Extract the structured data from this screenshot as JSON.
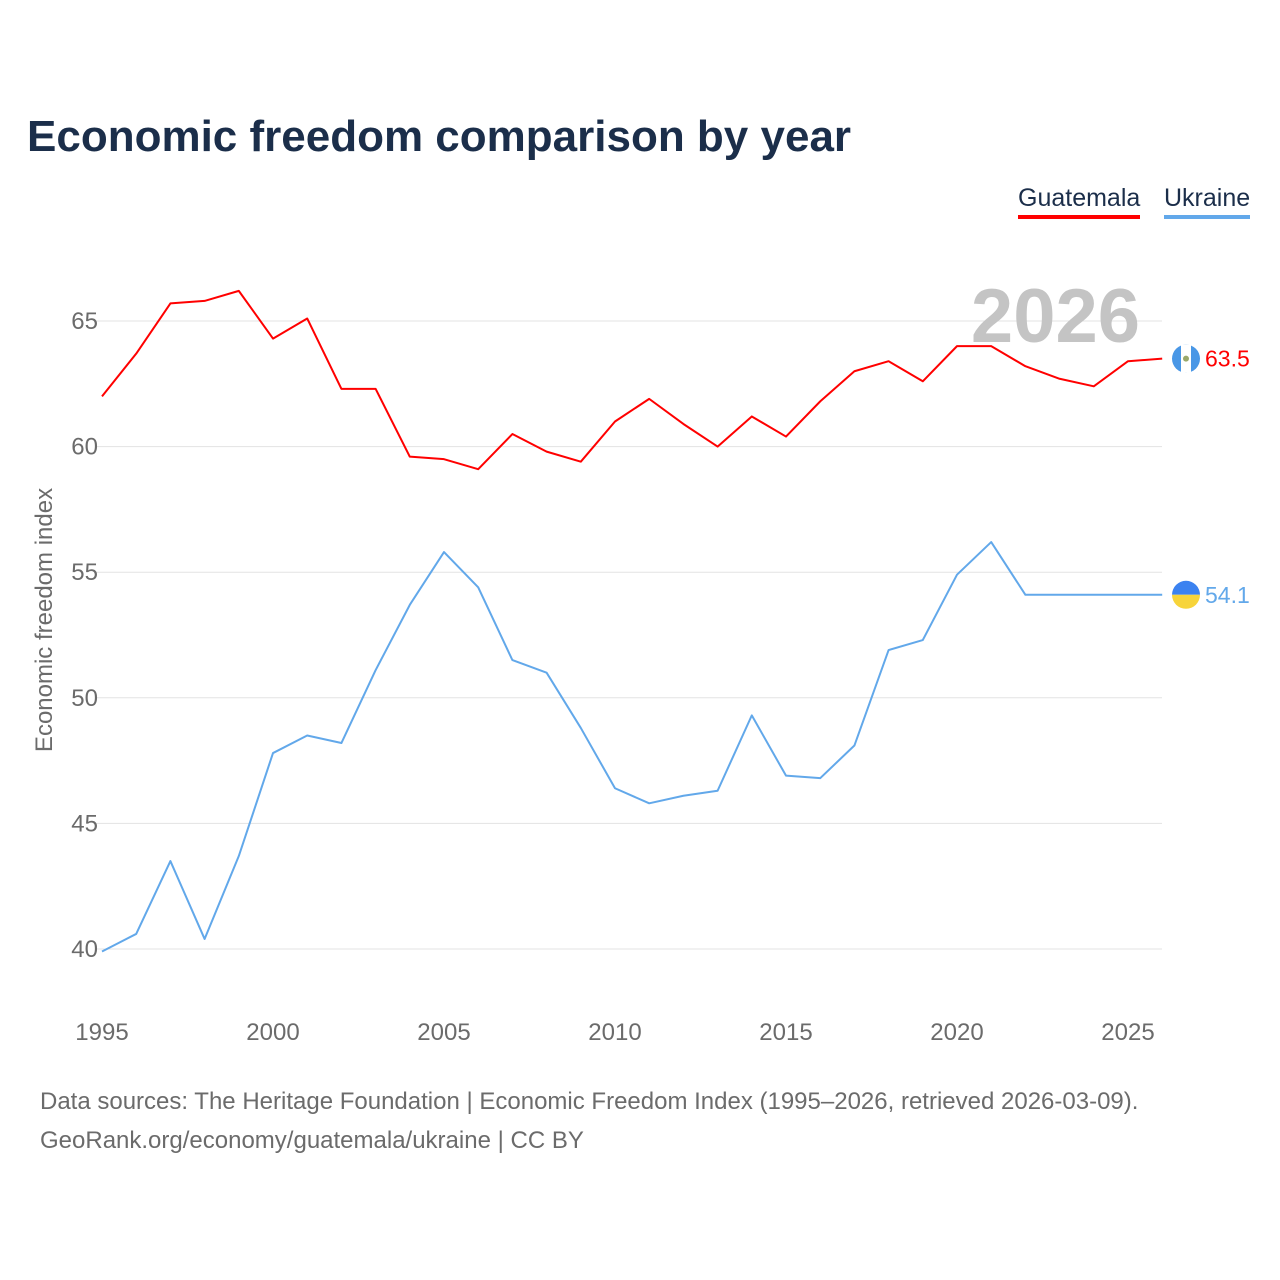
{
  "title": "Economic freedom comparison by year",
  "legend": [
    {
      "label": "Guatemala",
      "color": "#ff0000"
    },
    {
      "label": "Ukraine",
      "color": "#62a8ea"
    }
  ],
  "year_label": "2026",
  "source_line1": "Data sources: The Heritage Foundation | Economic Freedom Index (1995–2026, retrieved 2026-03-09).",
  "source_line2": "GeoRank.org/economy/guatemala/ukraine | CC BY",
  "chart_data": {
    "type": "line",
    "title": "Economic freedom comparison by year",
    "xlabel": "",
    "ylabel": "Economic freedom index",
    "xlim": [
      1995,
      2026
    ],
    "ylim": [
      38.5,
      67.5
    ],
    "xticks": [
      "1995",
      "2000",
      "2005",
      "2010",
      "2015",
      "2020",
      "2025"
    ],
    "yticks": [
      "40",
      "45",
      "50",
      "55",
      "60",
      "65"
    ],
    "grid": true,
    "legend_placement": "top-right",
    "x": [
      1995,
      1996,
      1997,
      1998,
      1999,
      2000,
      2001,
      2002,
      2003,
      2004,
      2005,
      2006,
      2007,
      2008,
      2009,
      2010,
      2011,
      2012,
      2013,
      2014,
      2015,
      2016,
      2017,
      2018,
      2019,
      2020,
      2021,
      2022,
      2023,
      2024,
      2025,
      2026
    ],
    "series": [
      {
        "name": "Guatemala",
        "color": "#ff0000",
        "end_label": "63.5",
        "values": [
          62.0,
          63.7,
          65.7,
          65.8,
          66.2,
          64.3,
          65.1,
          62.3,
          62.3,
          59.6,
          59.5,
          59.1,
          60.5,
          59.8,
          59.4,
          61.0,
          61.9,
          60.9,
          60.0,
          61.2,
          60.4,
          61.8,
          63.0,
          63.4,
          62.6,
          64.0,
          64.0,
          63.2,
          62.7,
          62.4,
          63.4,
          63.5
        ]
      },
      {
        "name": "Ukraine",
        "color": "#62a8ea",
        "end_label": "54.1",
        "values": [
          39.9,
          40.6,
          43.5,
          40.4,
          43.7,
          47.8,
          48.5,
          48.2,
          51.1,
          53.7,
          55.8,
          54.4,
          51.5,
          51.0,
          48.8,
          46.4,
          45.8,
          46.1,
          46.3,
          49.3,
          46.9,
          46.8,
          48.1,
          51.9,
          52.3,
          54.9,
          56.2,
          54.1,
          54.1,
          54.1,
          54.1,
          54.1
        ]
      }
    ]
  }
}
